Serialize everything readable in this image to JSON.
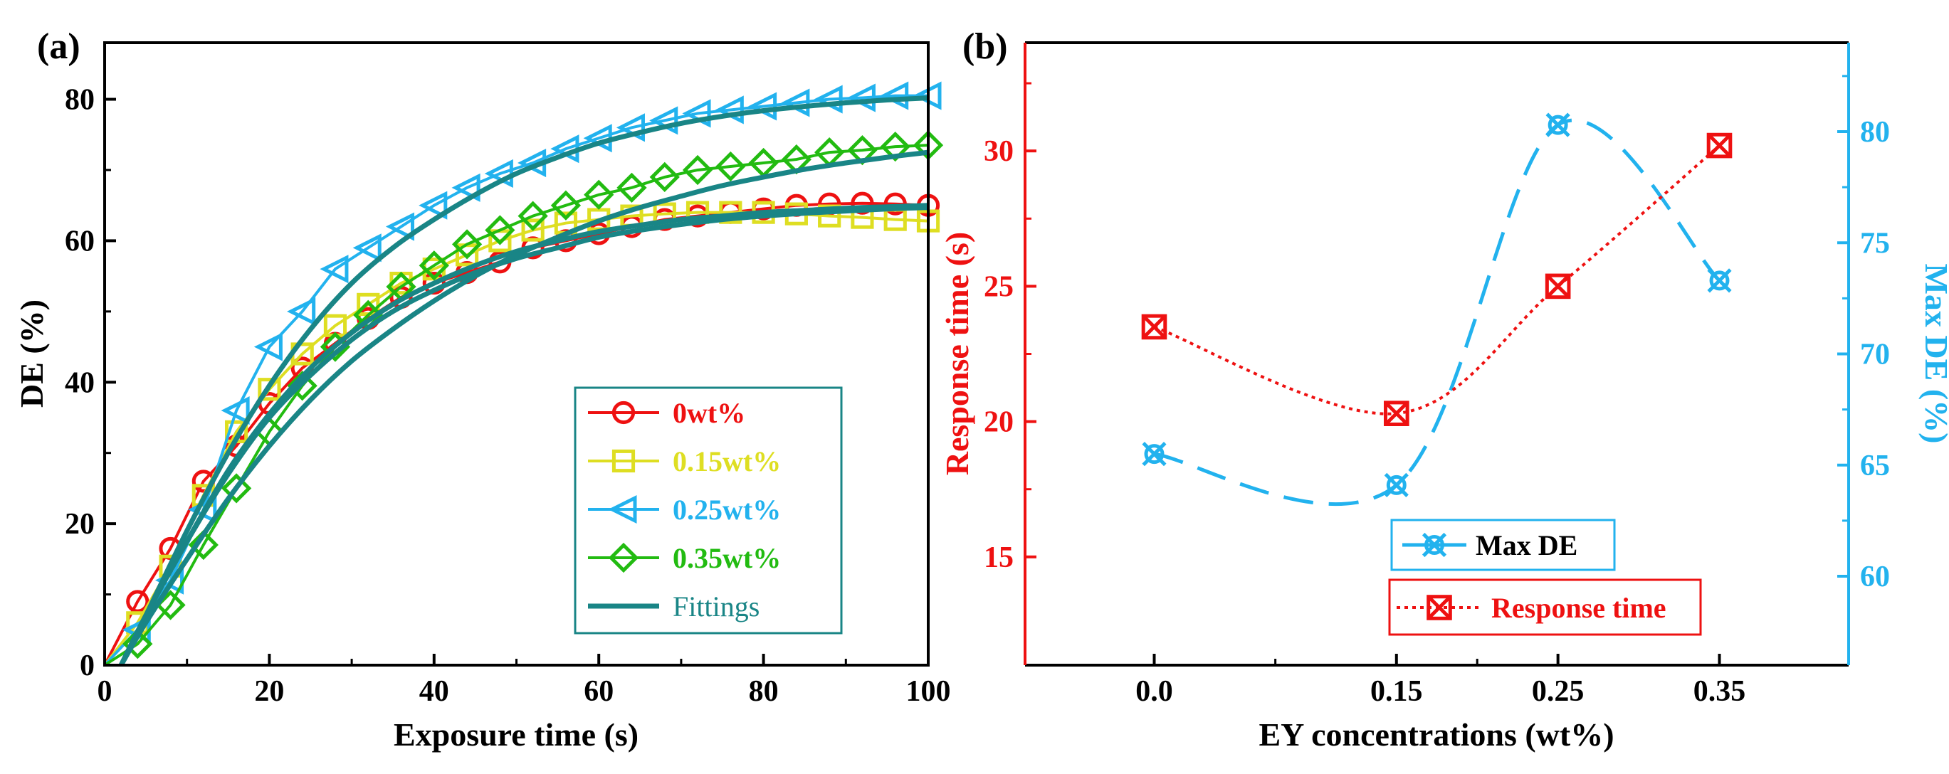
{
  "chart_data": [
    {
      "panel_label": "(a)",
      "type": "line",
      "xlabel": "Exposure time (s)",
      "ylabel": "DE (%)",
      "xlim": [
        0,
        100
      ],
      "ylim": [
        0,
        88
      ],
      "xticks": [
        "0",
        "20",
        "40",
        "60",
        "80",
        "100"
      ],
      "yticks": [
        "0",
        "20",
        "40",
        "60",
        "80"
      ],
      "legend_position": "bottom-right",
      "series": [
        {
          "name": "0wt%",
          "color": "#ee1111",
          "marker": "circle",
          "x": [
            0,
            4,
            8,
            12,
            16,
            20,
            24,
            28,
            32,
            36,
            40,
            44,
            48,
            52,
            56,
            60,
            64,
            68,
            72,
            76,
            80,
            84,
            88,
            92,
            96,
            100
          ],
          "y": [
            0,
            9,
            16.5,
            26,
            31,
            37,
            42,
            45.5,
            49,
            52,
            54,
            55.5,
            57,
            59,
            60,
            61,
            62,
            63,
            63.5,
            64,
            64.5,
            65,
            65.2,
            65.3,
            65.2,
            65
          ]
        },
        {
          "name": "0.15wt%",
          "color": "#dede22",
          "marker": "square",
          "x": [
            0,
            4,
            8,
            12,
            16,
            20,
            24,
            28,
            32,
            36,
            40,
            44,
            48,
            52,
            56,
            60,
            64,
            68,
            72,
            76,
            80,
            84,
            88,
            92,
            96,
            100
          ],
          "y": [
            0,
            6,
            14,
            24,
            33,
            39,
            44,
            48,
            51,
            54,
            56,
            58,
            60,
            61.5,
            62.5,
            63,
            63.5,
            63.8,
            64,
            64,
            64,
            63.8,
            63.5,
            63.3,
            63,
            62.8
          ]
        },
        {
          "name": "0.25wt%",
          "color": "#22b2ee",
          "marker": "triangle-left",
          "x": [
            0,
            4,
            8,
            12,
            16,
            20,
            24,
            28,
            32,
            36,
            40,
            44,
            48,
            52,
            56,
            60,
            64,
            68,
            72,
            76,
            80,
            84,
            88,
            92,
            96,
            100
          ],
          "y": [
            0,
            5,
            12,
            22,
            36,
            45,
            50,
            56,
            59,
            62,
            65,
            67.5,
            69.5,
            71,
            73,
            74.5,
            76,
            77,
            78,
            78.5,
            79,
            79.5,
            80,
            80.2,
            80.5,
            80.5
          ]
        },
        {
          "name": "0.35wt%",
          "color": "#22bb11",
          "marker": "diamond",
          "x": [
            0,
            4,
            8,
            12,
            16,
            20,
            24,
            28,
            32,
            36,
            40,
            44,
            48,
            52,
            56,
            60,
            64,
            68,
            72,
            76,
            80,
            84,
            88,
            92,
            96,
            100
          ],
          "y": [
            0,
            3,
            8.5,
            17,
            25,
            33,
            39.5,
            45,
            49.5,
            53.5,
            56.5,
            59.5,
            61.5,
            63.5,
            65,
            66.5,
            67.5,
            69,
            70,
            70.5,
            71,
            71.5,
            72.5,
            72.8,
            73.3,
            73.5
          ]
        }
      ],
      "fittings": {
        "name": "Fittings",
        "color": "#198586",
        "curves": [
          {
            "x": [
              2,
              5,
              10,
              15,
              20,
              25,
              30,
              35,
              40,
              45,
              50,
              55,
              60,
              65,
              70,
              75,
              80,
              85,
              90,
              95,
              100
            ],
            "y": [
              0,
              7,
              17.5,
              27,
              35,
              41,
              46,
              50,
              53,
              55.5,
              57.5,
              59,
              60.5,
              61.5,
              62.3,
              63,
              63.5,
              63.9,
              64.2,
              64.5,
              64.7
            ]
          },
          {
            "x": [
              2,
              5,
              10,
              15,
              20,
              25,
              30,
              35,
              40,
              45,
              50,
              55,
              60,
              65,
              70,
              75,
              80,
              85,
              90,
              95,
              100
            ],
            "y": [
              0,
              7,
              17.5,
              27.5,
              35.5,
              42,
              47,
              51,
              54,
              56.5,
              58.5,
              60,
              61.3,
              62.2,
              63,
              63.5,
              64,
              64.3,
              64.6,
              64.8,
              65
            ]
          },
          {
            "x": [
              2,
              5,
              10,
              15,
              20,
              25,
              30,
              35,
              40,
              45,
              50,
              55,
              60,
              65,
              70,
              75,
              80,
              85,
              90,
              95,
              100
            ],
            "y": [
              0,
              7,
              19,
              30,
              39.5,
              47.5,
              54,
              59,
              63,
              66.5,
              69.5,
              71.8,
              73.8,
              75.3,
              76.6,
              77.6,
              78.4,
              79,
              79.5,
              79.9,
              80.2
            ]
          },
          {
            "x": [
              2,
              5,
              10,
              15,
              20,
              25,
              30,
              35,
              40,
              45,
              50,
              55,
              60,
              65,
              70,
              75,
              80,
              85,
              90,
              95,
              100
            ],
            "y": [
              0,
              6,
              15,
              23.5,
              31,
              37.5,
              43,
              47.5,
              51.5,
              55,
              58,
              60.5,
              62.8,
              64.7,
              66.3,
              67.8,
              69,
              70.1,
              71,
              71.8,
              72.5
            ]
          }
        ]
      }
    },
    {
      "panel_label": "(b)",
      "type": "line",
      "xlabel": "EY concentrations (wt%)",
      "ylabel_left": "Response time (s)",
      "ylabel_right": "Max DE (%)",
      "categories": [
        "0.0",
        "0.15",
        "0.25",
        "0.35"
      ],
      "ylim_left": [
        11,
        34
      ],
      "ylim_right": [
        56,
        84
      ],
      "yticks_left": [
        "15",
        "20",
        "25",
        "30"
      ],
      "yticks_right": [
        "60",
        "65",
        "70",
        "75",
        "80"
      ],
      "legend_position": "bottom-right",
      "series": [
        {
          "name": "Max DE",
          "axis": "right",
          "color": "#22b2ee",
          "marker": "x-circle",
          "line": "dashed",
          "values": [
            65.5,
            64.1,
            80.3,
            73.3
          ]
        },
        {
          "name": "Response time",
          "axis": "left",
          "color": "#ee1111",
          "marker": "x-square",
          "line": "dotted",
          "values": [
            23.5,
            20.3,
            25,
            30.2
          ]
        }
      ]
    }
  ]
}
